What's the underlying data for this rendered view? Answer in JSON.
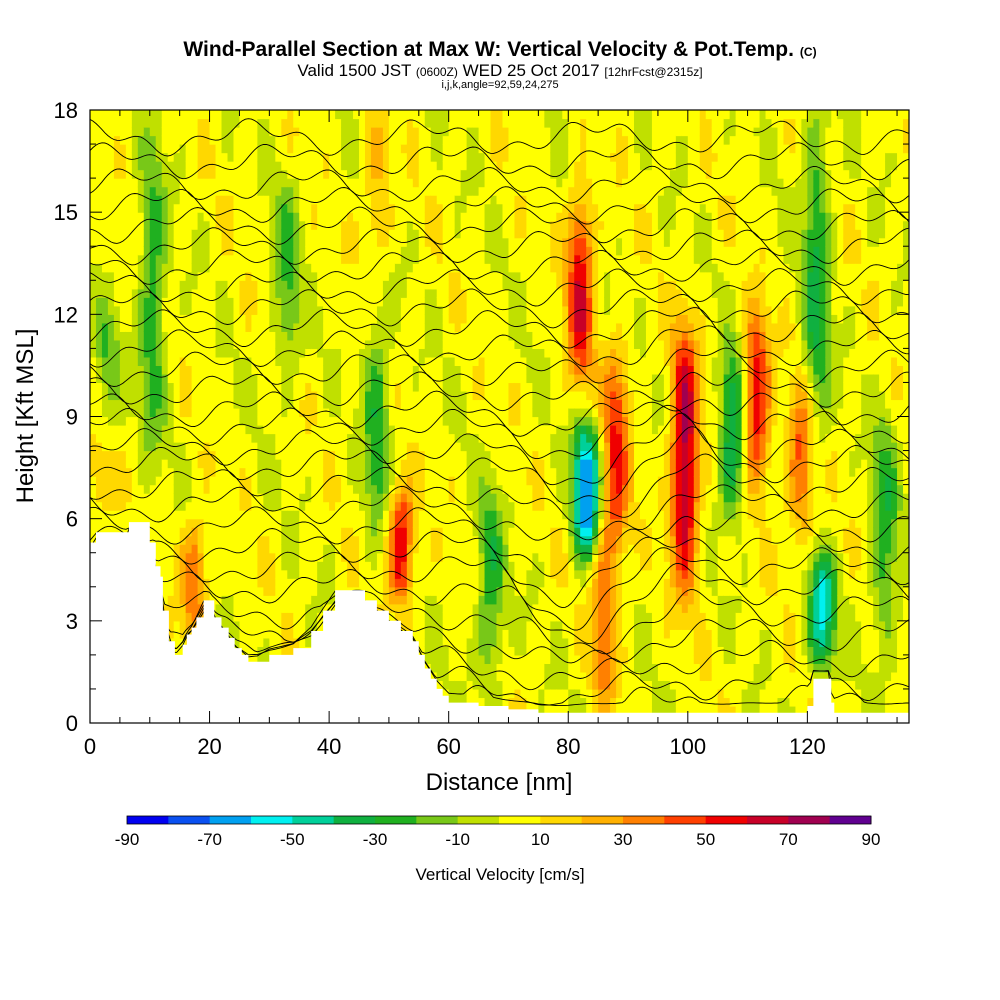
{
  "chart_data": {
    "type": "heatmap",
    "title": "Wind-Parallel Section at Max W: Vertical Velocity & Pot.Temp.",
    "title_mark": "(C)",
    "subtitle_main": "Valid 1500 JST",
    "subtitle_z": "(0600Z)",
    "subtitle_date": "WED 25 Oct 2017",
    "subtitle_fcst": "[12hrFcst@2315z]",
    "index_line": "i,j,k,angle=92,59,24,275",
    "xlabel": "Distance [nm]",
    "ylabel": "Height [Kft MSL]",
    "xlim": [
      0,
      137
    ],
    "ylim": [
      0,
      18
    ],
    "x_ticks": [
      0,
      20,
      40,
      60,
      80,
      100,
      120
    ],
    "x_tick_labels": [
      "0",
      "20",
      "40",
      "60",
      "80",
      "100",
      "120"
    ],
    "y_ticks": [
      0,
      3,
      6,
      9,
      12,
      15,
      18
    ],
    "y_tick_labels": [
      "0",
      "3",
      "6",
      "9",
      "12",
      "15",
      "18"
    ],
    "colorbar": {
      "label": "Vertical Velocity [cm/s]",
      "tick_labels": [
        "-90",
        "-70",
        "-50",
        "-30",
        "-10",
        "10",
        "30",
        "50",
        "70",
        "90"
      ],
      "tick_values": [
        -90,
        -70,
        -50,
        -30,
        -10,
        10,
        30,
        50,
        70,
        90
      ],
      "colors": [
        "#0000f0",
        "#0a50f0",
        "#00a0f0",
        "#00f0f0",
        "#00d09a",
        "#10b040",
        "#20b020",
        "#78c818",
        "#c0e000",
        "#ffff00",
        "#ffd800",
        "#ffb000",
        "#ff8000",
        "#ff4000",
        "#f00000",
        "#c80028",
        "#a00050",
        "#600090"
      ],
      "range": [
        -90,
        90
      ]
    },
    "terrain_kft": [
      [
        0,
        5.3
      ],
      [
        1,
        5.6
      ],
      [
        6,
        5.6
      ],
      [
        6.5,
        5.9
      ],
      [
        9.5,
        5.9
      ],
      [
        10,
        5.3
      ],
      [
        10.5,
        5.3
      ],
      [
        11,
        4.6
      ],
      [
        11.8,
        4.3
      ],
      [
        12.2,
        3.3
      ],
      [
        13.2,
        2.4
      ],
      [
        14.2,
        2.0
      ],
      [
        15.5,
        2.3
      ],
      [
        16.2,
        2.6
      ],
      [
        17,
        2.8
      ],
      [
        17.8,
        3.1
      ],
      [
        19,
        3.6
      ],
      [
        20,
        3.6
      ],
      [
        20.8,
        3.1
      ],
      [
        22,
        2.8
      ],
      [
        23.2,
        2.5
      ],
      [
        24.2,
        2.2
      ],
      [
        25.4,
        2.0
      ],
      [
        26.5,
        1.8
      ],
      [
        28,
        1.8
      ],
      [
        30,
        2.0
      ],
      [
        34,
        2.2
      ],
      [
        37,
        2.7
      ],
      [
        39,
        3.3
      ],
      [
        41,
        3.9
      ],
      [
        44,
        3.9
      ],
      [
        46,
        3.6
      ],
      [
        48,
        3.3
      ],
      [
        50,
        3.0
      ],
      [
        52,
        2.7
      ],
      [
        54,
        2.4
      ],
      [
        55,
        2.0
      ],
      [
        56,
        1.6
      ],
      [
        57,
        1.3
      ],
      [
        58,
        1.0
      ],
      [
        59,
        0.8
      ],
      [
        60,
        0.6
      ],
      [
        65,
        0.5
      ],
      [
        70,
        0.4
      ],
      [
        75,
        0.3
      ],
      [
        85,
        0.3
      ],
      [
        100,
        0.3
      ],
      [
        115,
        0.3
      ],
      [
        119,
        0.3
      ],
      [
        120,
        0.5
      ],
      [
        121,
        1.3
      ],
      [
        123.5,
        1.3
      ],
      [
        124,
        0.6
      ],
      [
        124.5,
        0.3
      ],
      [
        130,
        0.3
      ],
      [
        137,
        0.3
      ]
    ],
    "updraft_bands": [
      {
        "x": 17.5,
        "ymin": 2.5,
        "ymax": 6.0,
        "w": 35
      },
      {
        "x": 52,
        "ymin": 3.5,
        "ymax": 7.0,
        "w": 55
      },
      {
        "x": 48,
        "ymin": 13.5,
        "ymax": 18.0,
        "w": 20
      },
      {
        "x": 82,
        "ymin": 10.0,
        "ymax": 15.5,
        "w": 55
      },
      {
        "x": 88,
        "ymin": 5.0,
        "ymax": 11.0,
        "w": 45
      },
      {
        "x": 99.5,
        "ymin": 4.0,
        "ymax": 11.5,
        "w": 70
      },
      {
        "x": 111.5,
        "ymin": 7.0,
        "ymax": 12.0,
        "w": 55
      },
      {
        "x": 119,
        "ymin": 5.5,
        "ymax": 10.0,
        "w": 40
      },
      {
        "x": 86,
        "ymin": 0.5,
        "ymax": 6.0,
        "w": 35
      },
      {
        "x": 2,
        "ymin": 6.0,
        "ymax": 11.0,
        "w": 20
      }
    ],
    "downdraft_bands": [
      {
        "x": 83,
        "ymin": 4.8,
        "ymax": 8.8,
        "w": -75
      },
      {
        "x": 122.5,
        "ymin": 1.5,
        "ymax": 5.0,
        "w": -55
      },
      {
        "x": 107.5,
        "ymin": 6.0,
        "ymax": 11.0,
        "w": -45
      },
      {
        "x": 48,
        "ymin": 5.5,
        "ymax": 12.0,
        "w": -30
      },
      {
        "x": 67,
        "ymin": 1.0,
        "ymax": 7.0,
        "w": -30
      },
      {
        "x": 2.5,
        "ymin": 8.0,
        "ymax": 12.0,
        "w": -35
      },
      {
        "x": 33,
        "ymin": 10.0,
        "ymax": 16.0,
        "w": -25
      },
      {
        "x": 10.5,
        "ymin": 8.0,
        "ymax": 17.0,
        "w": -30
      },
      {
        "x": 133,
        "ymin": 2.0,
        "ymax": 9.0,
        "w": -30
      },
      {
        "x": 121.5,
        "ymin": 8.0,
        "ymax": 18.0,
        "w": -35
      }
    ],
    "theta_contours_kft": [
      0.6,
      1.2,
      1.9,
      2.6,
      3.3,
      4.0,
      4.6,
      5.2,
      5.8,
      6.4,
      7.0,
      7.6,
      8.1,
      8.7,
      9.2,
      9.8,
      10.4,
      11.0,
      11.6,
      12.2,
      12.8,
      13.4,
      14.0,
      14.6,
      15.2,
      15.8,
      16.5,
      17.2
    ]
  }
}
